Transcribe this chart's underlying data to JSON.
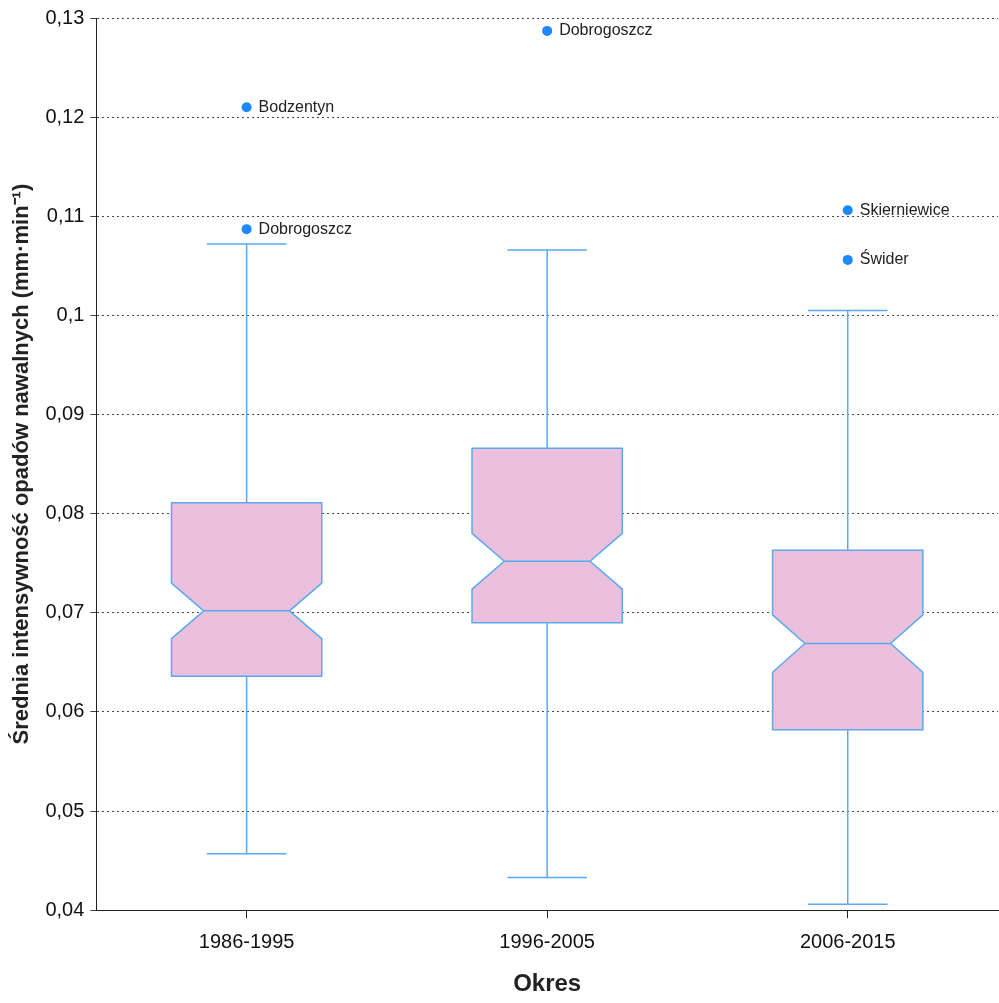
{
  "chart_data": {
    "type": "box",
    "xlabel": "Okres",
    "ylabel": "Średnia intensywność opadów nawalnych (mm·min⁻¹)",
    "categories": [
      "1986-1995",
      "1996-2005",
      "2006-2015"
    ],
    "series": [
      {
        "color": "#ebc0dd",
        "boxes": [
          {
            "low": 0.0457,
            "q1": 0.0636,
            "median": 0.0702,
            "q3": 0.0811,
            "high": 0.1072
          },
          {
            "low": 0.0433,
            "q1": 0.069,
            "median": 0.0752,
            "q3": 0.0866,
            "high": 0.1066
          },
          {
            "low": 0.0406,
            "q1": 0.0582,
            "median": 0.0669,
            "q3": 0.0763,
            "high": 0.1005
          }
        ]
      },
      {
        "type": "scatter",
        "color": "#1e88ff",
        "x": [
          "1986-1995",
          "1986-1995",
          "1996-2005",
          "2006-2015",
          "2006-2015"
        ],
        "values": [
          0.1087,
          0.121,
          0.1287,
          0.1106,
          0.1056
        ]
      }
    ],
    "ylim": [
      0.04,
      0.13
    ],
    "yticks": [
      {
        "value": 0.04,
        "label": "0,04"
      },
      {
        "value": 0.05,
        "label": "0,05"
      },
      {
        "value": 0.06,
        "label": "0,06"
      },
      {
        "value": 0.07,
        "label": "0,07"
      },
      {
        "value": 0.08,
        "label": "0,08"
      },
      {
        "value": 0.09,
        "label": "0,09"
      },
      {
        "value": 0.1,
        "label": "0,1"
      },
      {
        "value": 0.11,
        "label": "0,11"
      },
      {
        "value": 0.12,
        "label": "0,12"
      },
      {
        "value": 0.13,
        "label": "0,13"
      }
    ],
    "grid": "y",
    "annotations": [
      {
        "text": "Dobrogoszcz",
        "x": "1986-1995",
        "y": 0.1087
      },
      {
        "text": "Bodzentyn",
        "x": "1986-1995",
        "y": 0.121
      },
      {
        "text": "Dobrogoszcz",
        "x": "1996-2005",
        "y": 0.1287
      },
      {
        "text": "Skierniewice",
        "x": "2006-2015",
        "y": 0.1106
      },
      {
        "text": "Świder",
        "x": "2006-2015",
        "y": 0.1056
      }
    ]
  }
}
